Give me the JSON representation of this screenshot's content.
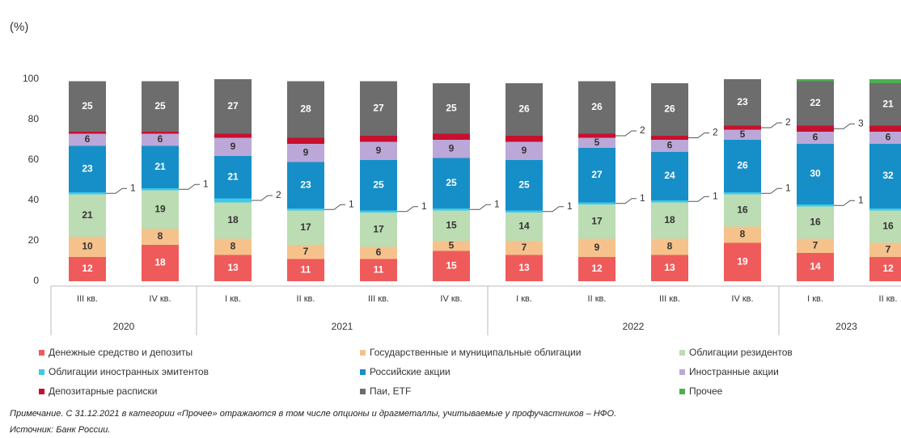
{
  "chart_data": {
    "type": "stacked_bar",
    "y_unit_label": "(%)",
    "categories": [
      "III кв.",
      "IV кв.",
      "I кв.",
      "II кв.",
      "III кв.",
      "IV кв.",
      "I кв.",
      "II кв.",
      "III кв.",
      "IV кв.",
      "I кв.",
      "II кв."
    ],
    "groups": [
      {
        "label": "2020",
        "span": 2
      },
      {
        "label": "2021",
        "span": 4
      },
      {
        "label": "2022",
        "span": 4
      },
      {
        "label": "2023",
        "span": 2
      }
    ],
    "ylim": [
      0,
      100
    ],
    "yticks": [
      0,
      20,
      40,
      60,
      80,
      100
    ],
    "series": [
      {
        "name": "Денежные средство и депозиты",
        "color": "#ef5b5b",
        "text_color": "#ffffff",
        "values": [
          12,
          18,
          13,
          11,
          11,
          15,
          13,
          12,
          13,
          19,
          14,
          12
        ]
      },
      {
        "name": "Государственные и муниципальные облигации",
        "color": "#f6c28c",
        "text_color": "#333333",
        "values": [
          10,
          8,
          8,
          7,
          6,
          5,
          7,
          9,
          8,
          8,
          7,
          7
        ]
      },
      {
        "name": "Облигации резидентов",
        "color": "#bcdcb3",
        "text_color": "#333333",
        "values": [
          21,
          19,
          18,
          17,
          17,
          15,
          14,
          17,
          18,
          16,
          16,
          16
        ]
      },
      {
        "name": "Облигации иностранных эмитентов",
        "color": "#3fc9ea",
        "text_color": "#333333",
        "outside_labels": true,
        "values": [
          1,
          1,
          2,
          1,
          1,
          1,
          1,
          1,
          1,
          1,
          1,
          1
        ]
      },
      {
        "name": "Российские акции",
        "color": "#168fc8",
        "text_color": "#ffffff",
        "values": [
          23,
          21,
          21,
          23,
          25,
          25,
          25,
          27,
          24,
          26,
          30,
          32
        ]
      },
      {
        "name": "Иностранные акции",
        "color": "#bba8d8",
        "text_color": "#333333",
        "values": [
          6,
          6,
          9,
          9,
          9,
          9,
          9,
          5,
          6,
          5,
          6,
          6
        ]
      },
      {
        "name": "Депозитарные расписки",
        "color": "#c8102e",
        "text_color": "#333333",
        "outside_labels": true,
        "values": [
          1,
          1,
          2,
          3,
          3,
          3,
          3,
          2,
          2,
          2,
          3,
          3
        ],
        "value_labels": [
          null,
          null,
          null,
          null,
          null,
          null,
          null,
          "2",
          "2",
          "2",
          "3",
          null
        ]
      },
      {
        "name": "Паи, ETF",
        "color": "#6d6d6d",
        "text_color": "#ffffff",
        "values": [
          25,
          25,
          27,
          28,
          27,
          25,
          26,
          26,
          26,
          23,
          22,
          21
        ]
      },
      {
        "name": "Прочее",
        "color": "#4caf50",
        "text_color": "#ffffff",
        "hide_labels": true,
        "values": [
          null,
          null,
          null,
          null,
          null,
          null,
          null,
          null,
          null,
          null,
          1,
          2
        ]
      }
    ],
    "note": "Примечание. С 31.12.2021 в категории «Прочее» отражаются в том числе опционы и драгметаллы, учитываемые у профучастников – НФО.",
    "source": "Источник: Банк России."
  }
}
